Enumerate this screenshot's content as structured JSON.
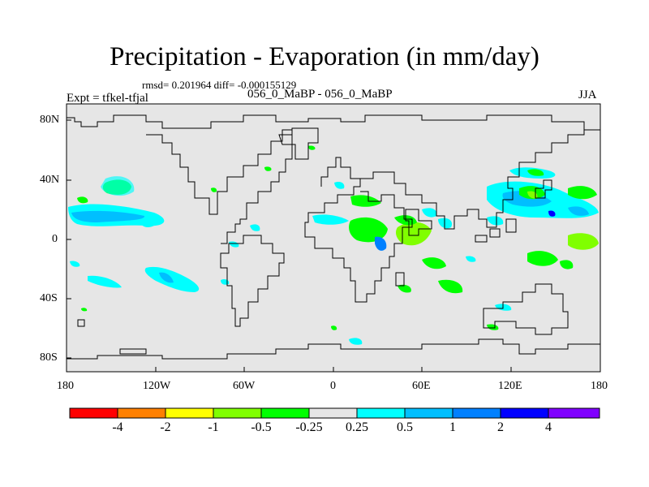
{
  "title": "Precipitation - Evaporation (in mm/day)",
  "stats": "rmsd= 0.201964 diff= -0.000155129",
  "expt": "Expt = tfkel-tfjal",
  "runs": "056_0_MaBP - 056_0_MaBP",
  "season": "JJA",
  "lon_ticks": [
    "180",
    "120W",
    "60W",
    "0",
    "60E",
    "120E",
    "180"
  ],
  "lat_ticks": [
    "80N",
    "40N",
    "0",
    "40S",
    "80S"
  ],
  "legend": {
    "colors": [
      "#ff0000",
      "#ff8000",
      "#ffff00",
      "#80ff00",
      "#00ff00",
      "#e6e6e6",
      "#00ffff",
      "#00bfff",
      "#0080ff",
      "#0000ff",
      "#8000ff"
    ],
    "labels": [
      "-4",
      "-2",
      "-1",
      "-0.5",
      "-0.25",
      "0.25",
      "0.5",
      "1",
      "2",
      "4"
    ]
  },
  "colors": {
    "background_fill": "#e6e6e6",
    "coastline": "#000000"
  }
}
